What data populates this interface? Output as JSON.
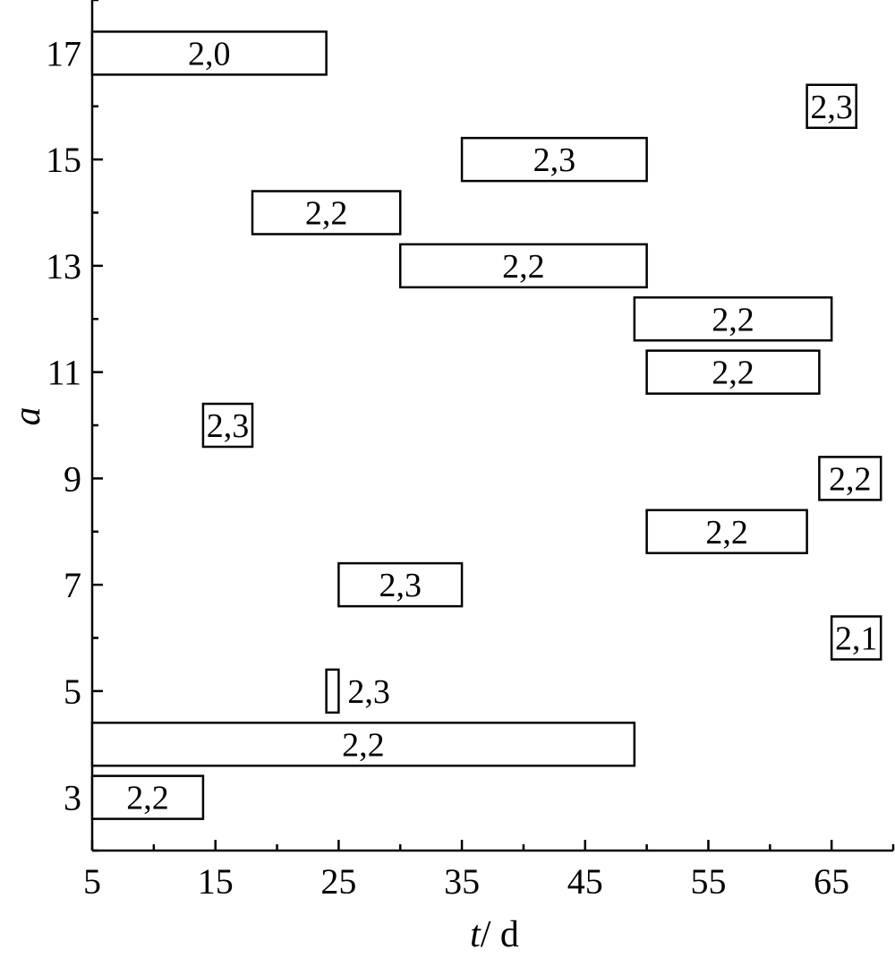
{
  "chart_data": {
    "type": "bar",
    "orientation": "horizontal-intervals",
    "title": "",
    "xlabel": {
      "italic": "t",
      "rest": "/ d"
    },
    "ylabel": "a",
    "xlim": [
      5,
      70
    ],
    "ylim": [
      2,
      18
    ],
    "x_ticks": [
      5,
      15,
      25,
      35,
      45,
      55,
      65
    ],
    "y_ticks": [
      3,
      5,
      7,
      9,
      11,
      13,
      15,
      17
    ],
    "grid": false,
    "bars": [
      {
        "a": 17,
        "start": 5,
        "end": 24,
        "label": "2,0"
      },
      {
        "a": 16,
        "start": 63,
        "end": 67,
        "label": "2,3"
      },
      {
        "a": 15,
        "start": 35,
        "end": 50,
        "label": "2,3"
      },
      {
        "a": 14,
        "start": 18,
        "end": 30,
        "label": "2,2"
      },
      {
        "a": 13,
        "start": 30,
        "end": 50,
        "label": "2,2"
      },
      {
        "a": 12,
        "start": 49,
        "end": 65,
        "label": "2,2"
      },
      {
        "a": 11,
        "start": 50,
        "end": 64,
        "label": "2,2"
      },
      {
        "a": 10,
        "start": 14,
        "end": 18,
        "label": "2,3"
      },
      {
        "a": 9,
        "start": 64,
        "end": 69,
        "label": "2,2"
      },
      {
        "a": 8,
        "start": 50,
        "end": 63,
        "label": "2,2"
      },
      {
        "a": 7,
        "start": 25,
        "end": 35,
        "label": "2,3"
      },
      {
        "a": 6,
        "start": 65,
        "end": 69,
        "label": "2,1"
      },
      {
        "a": 5,
        "start": 24,
        "end": 25,
        "label": "2,3",
        "label_outside": true
      },
      {
        "a": 4,
        "start": 5,
        "end": 49,
        "label": "2,2"
      },
      {
        "a": 3,
        "start": 5,
        "end": 14,
        "label": "2,2"
      }
    ]
  }
}
